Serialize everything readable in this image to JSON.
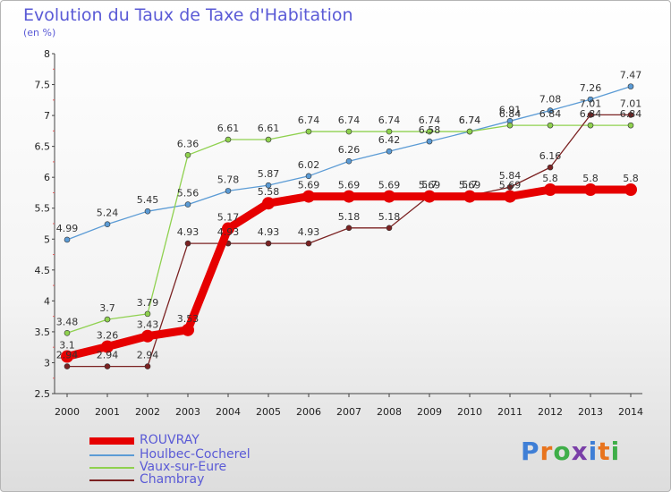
{
  "title": "Evolution du Taux de Taxe d'Habitation",
  "unit": "(en %)",
  "logo": {
    "text": "Proxiti",
    "letter_colors": [
      "#3f7fd6",
      "#e8741e",
      "#3fae49",
      "#7a3fa8",
      "#3f7fd6",
      "#e8741e",
      "#3fae49"
    ]
  },
  "chart_data": {
    "type": "line",
    "x": [
      2000,
      2001,
      2002,
      2003,
      2004,
      2005,
      2006,
      2007,
      2008,
      2009,
      2010,
      2011,
      2012,
      2013,
      2014
    ],
    "ylim": [
      2.5,
      8
    ],
    "yticks": [
      "2.5",
      "3",
      "3.5",
      "4",
      "4.5",
      "5",
      "5.5",
      "6",
      "6.5",
      "7",
      "7.5",
      "8"
    ],
    "grid": false,
    "legend_position": "bottom-left",
    "series": [
      {
        "name": "ROUVRAY",
        "color": "#e60000",
        "values": [
          3.1,
          3.26,
          3.43,
          3.53,
          5.17,
          5.58,
          5.69,
          5.69,
          5.69,
          5.69,
          5.69,
          5.69,
          5.8,
          5.8,
          5.8
        ],
        "labels": [
          "3.1",
          "3.26",
          "3.43",
          "3.53",
          "5.17",
          "5.58",
          "5.69",
          "5.69",
          "5.69",
          "5.69",
          "5.69",
          "5.69",
          "5.8",
          "5.8",
          "5.8"
        ]
      },
      {
        "name": "Houlbec-Cocherel",
        "color": "#5b9bd5",
        "values": [
          4.99,
          5.24,
          5.45,
          5.56,
          5.78,
          5.87,
          6.02,
          6.26,
          6.42,
          6.58,
          6.74,
          6.91,
          7.08,
          7.26,
          7.47
        ],
        "labels": [
          "4.99",
          "5.24",
          "5.45",
          "5.56",
          "5.78",
          "5.87",
          "6.02",
          "6.26",
          "6.42",
          "6.58",
          "6.74",
          "6.91",
          "7.08",
          "7.26",
          "7.47"
        ]
      },
      {
        "name": "Vaux-sur-Eure",
        "color": "#8fd14f",
        "values": [
          3.48,
          3.7,
          3.79,
          6.36,
          6.61,
          6.61,
          6.74,
          6.74,
          6.74,
          6.74,
          6.74,
          6.84,
          6.84,
          6.84,
          6.84
        ],
        "labels": [
          "3.48",
          "3.7",
          "3.79",
          "6.36",
          "6.61",
          "6.61",
          "6.74",
          "6.74",
          "6.74",
          "6.74",
          "6.74",
          "6.84",
          "6.84",
          "6.84",
          "6.84"
        ]
      },
      {
        "name": "Chambray",
        "color": "#7b2222",
        "values": [
          2.94,
          2.94,
          2.94,
          4.93,
          4.93,
          4.93,
          4.93,
          5.18,
          5.18,
          5.7,
          5.7,
          5.84,
          6.16,
          7.01,
          7.01
        ],
        "labels": [
          "2.94",
          "2.94",
          "2.94",
          "4.93",
          "4.93",
          "4.93",
          "4.93",
          "5.18",
          "5.18",
          "5.7",
          "5.7",
          "5.84",
          "6.16",
          "7.01",
          "7.01"
        ]
      }
    ]
  }
}
